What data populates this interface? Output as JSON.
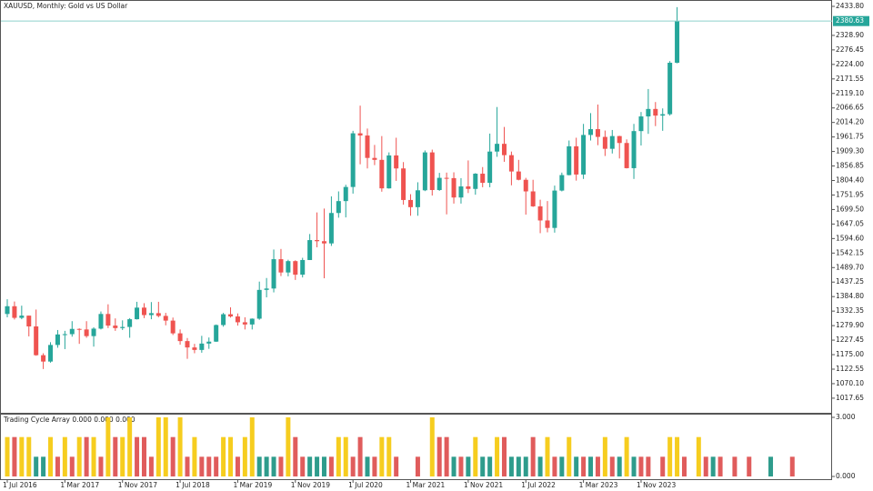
{
  "chart_data": [
    {
      "type": "candlestick",
      "title": "XAUUSD, Monthly:  Gold vs US Dollar",
      "up_color": "#26a69a",
      "down_color": "#ef5350",
      "open": [
        1322,
        1350,
        1308,
        1316,
        1277,
        1173,
        1150,
        1210,
        1248,
        1249,
        1268,
        1266,
        1242,
        1269,
        1322,
        1280,
        1271,
        1275,
        1303,
        1345,
        1318,
        1325,
        1315,
        1298,
        1252,
        1224,
        1201,
        1192,
        1215,
        1222,
        1282,
        1321,
        1313,
        1292,
        1284,
        1305,
        1409,
        1414,
        1520,
        1472,
        1513,
        1464,
        1517,
        1589,
        1585,
        1577,
        1687,
        1730,
        1781,
        1975,
        1967,
        1886,
        1879,
        1776,
        1895,
        1848,
        1734,
        1708,
        1769,
        1906,
        1770,
        1814,
        1813,
        1743,
        1783,
        1774,
        1829,
        1796,
        1909,
        1937,
        1896,
        1837,
        1807,
        1765,
        1711,
        1660,
        1633,
        1768,
        1824,
        1928,
        1826,
        1969,
        1990,
        1962,
        1919,
        1965,
        1940,
        1849,
        1983,
        2036,
        2063,
        2039,
        2044,
        2230
      ],
      "high": [
        1375,
        1367,
        1352,
        1316,
        1338,
        1180,
        1220,
        1264,
        1261,
        1296,
        1270,
        1296,
        1274,
        1331,
        1357,
        1306,
        1299,
        1307,
        1366,
        1361,
        1365,
        1366,
        1326,
        1309,
        1266,
        1235,
        1214,
        1243,
        1237,
        1284,
        1326,
        1346,
        1324,
        1310,
        1306,
        1439,
        1452,
        1555,
        1557,
        1518,
        1516,
        1525,
        1611,
        1689,
        1703,
        1747,
        1765,
        1789,
        1984,
        2075,
        1992,
        1933,
        1965,
        1906,
        1959,
        1871,
        1755,
        1798,
        1913,
        1916,
        1832,
        1833,
        1834,
        1813,
        1877,
        1831,
        1853,
        1974,
        2070,
        1998,
        1909,
        1879,
        1814,
        1807,
        1735,
        1730,
        1786,
        1833,
        1949,
        1959,
        2009,
        2048,
        2079,
        1985,
        1987,
        1966,
        1953,
        2009,
        2052,
        2135,
        2088,
        2065,
        2236,
        2431
      ],
      "low": [
        1310,
        1302,
        1303,
        1241,
        1171,
        1123,
        1146,
        1200,
        1195,
        1240,
        1214,
        1236,
        1204,
        1266,
        1271,
        1261,
        1264,
        1236,
        1302,
        1307,
        1303,
        1310,
        1281,
        1246,
        1211,
        1160,
        1180,
        1182,
        1196,
        1221,
        1276,
        1309,
        1280,
        1266,
        1266,
        1301,
        1382,
        1400,
        1459,
        1458,
        1445,
        1454,
        1517,
        1563,
        1451,
        1568,
        1670,
        1671,
        1757,
        1863,
        1848,
        1860,
        1764,
        1775,
        1803,
        1717,
        1677,
        1677,
        1766,
        1750,
        1767,
        1682,
        1721,
        1721,
        1759,
        1753,
        1780,
        1780,
        1890,
        1872,
        1787,
        1805,
        1681,
        1709,
        1614,
        1617,
        1616,
        1765,
        1823,
        1804,
        1810,
        1949,
        1932,
        1893,
        1902,
        1884,
        1848,
        1810,
        1931,
        1973,
        2001,
        1984,
        2039,
        2228
      ],
      "close": [
        1350,
        1308,
        1316,
        1277,
        1173,
        1150,
        1210,
        1248,
        1249,
        1268,
        1266,
        1242,
        1269,
        1322,
        1280,
        1271,
        1275,
        1303,
        1345,
        1318,
        1325,
        1315,
        1298,
        1252,
        1224,
        1201,
        1192,
        1215,
        1222,
        1282,
        1321,
        1313,
        1292,
        1284,
        1305,
        1409,
        1414,
        1520,
        1472,
        1513,
        1464,
        1517,
        1589,
        1585,
        1577,
        1687,
        1730,
        1781,
        1975,
        1967,
        1886,
        1879,
        1776,
        1895,
        1848,
        1734,
        1708,
        1769,
        1906,
        1770,
        1814,
        1813,
        1743,
        1783,
        1774,
        1829,
        1796,
        1909,
        1937,
        1896,
        1837,
        1807,
        1765,
        1711,
        1660,
        1633,
        1768,
        1824,
        1928,
        1826,
        1969,
        1990,
        1962,
        1919,
        1965,
        1940,
        1849,
        1983,
        2036,
        2063,
        2039,
        2044,
        2230,
        2380.63
      ],
      "ylim": [
        961.5,
        2456.8
      ],
      "yticks": [
        {
          "value": 2433.8,
          "label": "2433.80"
        },
        {
          "value": 2328.9,
          "label": "2328.90"
        },
        {
          "value": 2276.45,
          "label": "2276.45"
        },
        {
          "value": 2224,
          "label": "2224.00"
        },
        {
          "value": 2171.55,
          "label": "2171.55"
        },
        {
          "value": 2119.1,
          "label": "2119.10"
        },
        {
          "value": 2066.65,
          "label": "2066.65"
        },
        {
          "value": 2014.2,
          "label": "2014.20"
        },
        {
          "value": 1961.75,
          "label": "1961.75"
        },
        {
          "value": 1909.3,
          "label": "1909.30"
        },
        {
          "value": 1856.85,
          "label": "1856.85"
        },
        {
          "value": 1804.4,
          "label": "1804.40"
        },
        {
          "value": 1751.95,
          "label": "1751.95"
        },
        {
          "value": 1699.5,
          "label": "1699.50"
        },
        {
          "value": 1647.05,
          "label": "1647.05"
        },
        {
          "value": 1594.6,
          "label": "1594.60"
        },
        {
          "value": 1542.15,
          "label": "1542.15"
        },
        {
          "value": 1489.7,
          "label": "1489.70"
        },
        {
          "value": 1437.25,
          "label": "1437.25"
        },
        {
          "value": 1384.8,
          "label": "1384.80"
        },
        {
          "value": 1332.35,
          "label": "1332.35"
        },
        {
          "value": 1279.9,
          "label": "1279.90"
        },
        {
          "value": 1227.45,
          "label": "1227.45"
        },
        {
          "value": 1175,
          "label": "1175.00"
        },
        {
          "value": 1122.55,
          "label": "1122.55"
        },
        {
          "value": 1070.1,
          "label": "1070.10"
        },
        {
          "value": 1017.65,
          "label": "1017.65"
        }
      ],
      "price_line": {
        "value": 2380.63,
        "label": "2380.63",
        "color": "#26a69a"
      },
      "xticks": [
        {
          "value": 0,
          "label": "1 Jul 2016"
        },
        {
          "value": 8,
          "label": "1 Mar 2017"
        },
        {
          "value": 16,
          "label": "1 Nov 2017"
        },
        {
          "value": 24,
          "label": "1 Jul 2018"
        },
        {
          "value": 32,
          "label": "1 Mar 2019"
        },
        {
          "value": 40,
          "label": "1 Nov 2019"
        },
        {
          "value": 48,
          "label": "1 Jul 2020"
        },
        {
          "value": 56,
          "label": "1 Mar 2021"
        },
        {
          "value": 64,
          "label": "1 Nov 2021"
        },
        {
          "value": 72,
          "label": "1 Jul 2022"
        },
        {
          "value": 80,
          "label": "1 Mar 2023"
        },
        {
          "value": 88,
          "label": "1 Nov 2023"
        }
      ]
    },
    {
      "type": "bar",
      "title": "Trading Cycle Array 0.000 0.000 0.000",
      "values": [
        2,
        2,
        2,
        2,
        1,
        1,
        2,
        1,
        2,
        1,
        2,
        2,
        2,
        1,
        3,
        2,
        2,
        3,
        2,
        2,
        1,
        3,
        3,
        2,
        3,
        1,
        2,
        1,
        1,
        1,
        2,
        2,
        1,
        2,
        3,
        1,
        1,
        1,
        1,
        3,
        2,
        1,
        1,
        1,
        1,
        1,
        2,
        2,
        1,
        2,
        1,
        1,
        2,
        2,
        1,
        null,
        null,
        1,
        null,
        3,
        2,
        2,
        1,
        1,
        1,
        2,
        1,
        1,
        2,
        2,
        1,
        1,
        1,
        2,
        1,
        2,
        1,
        1,
        2,
        1,
        1,
        1,
        1,
        2,
        1,
        1,
        2,
        1,
        1,
        1,
        null,
        1,
        2,
        2,
        1,
        null,
        2,
        1,
        1,
        1,
        null,
        1,
        null,
        1,
        null,
        null,
        1,
        null,
        null,
        1
      ],
      "colors": [
        "#f6cd1f",
        "#e05c5c",
        "#f6cd1f",
        "#f6cd1f",
        "#2e9c8c",
        "#2e9c8c",
        "#f6cd1f",
        "#e05c5c",
        "#f6cd1f",
        "#e05c5c",
        "#f6cd1f",
        "#e05c5c",
        "#f6cd1f",
        "#e05c5c",
        "#f6cd1f",
        "#e05c5c",
        "#f6cd1f",
        "#f6cd1f",
        "#e05c5c",
        "#e05c5c",
        "#e05c5c",
        "#f6cd1f",
        "#f6cd1f",
        "#e05c5c",
        "#f6cd1f",
        "#e05c5c",
        "#f6cd1f",
        "#e05c5c",
        "#e05c5c",
        "#e05c5c",
        "#f6cd1f",
        "#f6cd1f",
        "#e05c5c",
        "#f6cd1f",
        "#f6cd1f",
        "#2e9c8c",
        "#2e9c8c",
        "#2e9c8c",
        "#e05c5c",
        "#f6cd1f",
        "#e05c5c",
        "#e05c5c",
        "#2e9c8c",
        "#2e9c8c",
        "#2e9c8c",
        "#e05c5c",
        "#f6cd1f",
        "#f6cd1f",
        "#e05c5c",
        "#e05c5c",
        "#2e9c8c",
        "#e05c5c",
        "#f6cd1f",
        "#f6cd1f",
        "#e05c5c",
        null,
        null,
        "#e05c5c",
        null,
        "#f6cd1f",
        "#e05c5c",
        "#e05c5c",
        "#2e9c8c",
        "#e05c5c",
        "#2e9c8c",
        "#f6cd1f",
        "#2e9c8c",
        "#2e9c8c",
        "#f6cd1f",
        "#e05c5c",
        "#2e9c8c",
        "#2e9c8c",
        "#2e9c8c",
        "#e05c5c",
        "#2e9c8c",
        "#f6cd1f",
        "#e05c5c",
        "#2e9c8c",
        "#f6cd1f",
        "#2e9c8c",
        "#e05c5c",
        "#2e9c8c",
        "#e05c5c",
        "#f6cd1f",
        "#e05c5c",
        "#2e9c8c",
        "#f6cd1f",
        "#2e9c8c",
        "#e05c5c",
        "#e05c5c",
        null,
        "#e05c5c",
        "#f6cd1f",
        "#f6cd1f",
        "#e05c5c",
        null,
        "#f6cd1f",
        "#e05c5c",
        "#2e9c8c",
        "#e05c5c",
        null,
        "#e05c5c",
        null,
        "#e05c5c",
        null,
        null,
        "#2e9c8c",
        null,
        null,
        "#e05c5c"
      ],
      "ylim": [
        0,
        3
      ],
      "yticks": [
        {
          "value": 3,
          "label": "3.000"
        },
        {
          "value": 0,
          "label": "0.000"
        }
      ]
    }
  ]
}
